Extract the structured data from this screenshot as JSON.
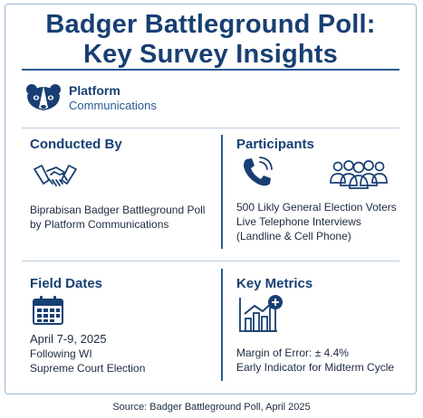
{
  "header": {
    "title_line1": "Badger Battleground Poll:",
    "title_line2": "Key Survey Insights"
  },
  "logo": {
    "icon": "badger-icon",
    "line1": "Platform",
    "line2": "Communications"
  },
  "conducted_by": {
    "title": "Conducted By",
    "icon": "handshake-icon",
    "line1": "Biprabisan Badger Battleground Poll",
    "line2": "by Platform Communications"
  },
  "participants": {
    "title": "Participants",
    "icons": [
      "phone-icon",
      "people-group-icon"
    ],
    "line1": "500 Likly General Election Voters",
    "line2": "Live Telephone Interviews",
    "line3": "(Landline & Cell Phone)"
  },
  "field_dates": {
    "title": "Field Dates",
    "icon": "calendar-icon",
    "line1": "April 7-9, 2025",
    "line2": "Following WI",
    "line3": "Supreme Court Election"
  },
  "key_metrics": {
    "title": "Key Metrics",
    "icon": "bar-chart-plus-icon",
    "line1": "Margin of Error: ± 4.4%",
    "line2": "Early Indicator for Midterm Cycle"
  },
  "footer": {
    "source": "Source: Badger Battleground Poll, April 2025"
  },
  "colors": {
    "primary": "#183f73",
    "accent": "#2a5a93"
  }
}
